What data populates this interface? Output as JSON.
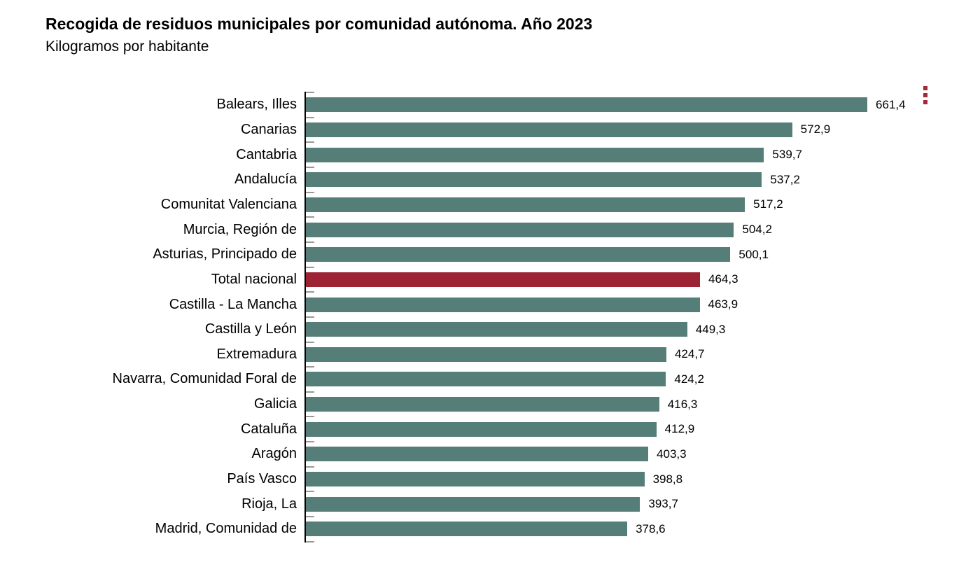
{
  "title": "Recogida de residuos municipales por comunidad autónoma. Año 2023",
  "subtitle": "Kilogramos por habitante",
  "context_menu": {
    "icon": "kebab-menu-icon"
  },
  "colors": {
    "bar": "#567E78",
    "highlight_bar": "#9D2334",
    "menu_dots": "#A42A38",
    "axis_line": "#000000",
    "tick": "#999999",
    "text": "#000000",
    "background": "#FFFFFF"
  },
  "chart_data": {
    "type": "bar",
    "orientation": "horizontal",
    "title": "Recogida de residuos municipales por comunidad autónoma. Año 2023",
    "subtitle": "Kilogramos por habitante",
    "xlabel": "",
    "ylabel": "",
    "grid": false,
    "legend": false,
    "value_labels_shown": true,
    "xlim": [
      0,
      716
    ],
    "highlight_category": "Total nacional",
    "categories": [
      "Balears, Illes",
      "Canarias",
      "Cantabria",
      "Andalucía",
      "Comunitat Valenciana",
      "Murcia, Región de",
      "Asturias, Principado de",
      "Total nacional",
      "Castilla - La Mancha",
      "Castilla y León",
      "Extremadura",
      "Navarra, Comunidad Foral de",
      "Galicia",
      "Cataluña",
      "Aragón",
      "País Vasco",
      "Rioja, La",
      "Madrid, Comunidad de"
    ],
    "values": [
      661.4,
      572.9,
      539.7,
      537.2,
      517.2,
      504.2,
      500.1,
      464.3,
      463.9,
      449.3,
      424.7,
      424.2,
      416.3,
      412.9,
      403.3,
      398.8,
      393.7,
      378.6
    ],
    "value_labels": [
      "661,4",
      "572,9",
      "539,7",
      "537,2",
      "517,2",
      "504,2",
      "500,1",
      "464,3",
      "463,9",
      "449,3",
      "424,7",
      "424,2",
      "416,3",
      "412,9",
      "403,3",
      "398,8",
      "393,7",
      "378,6"
    ]
  }
}
